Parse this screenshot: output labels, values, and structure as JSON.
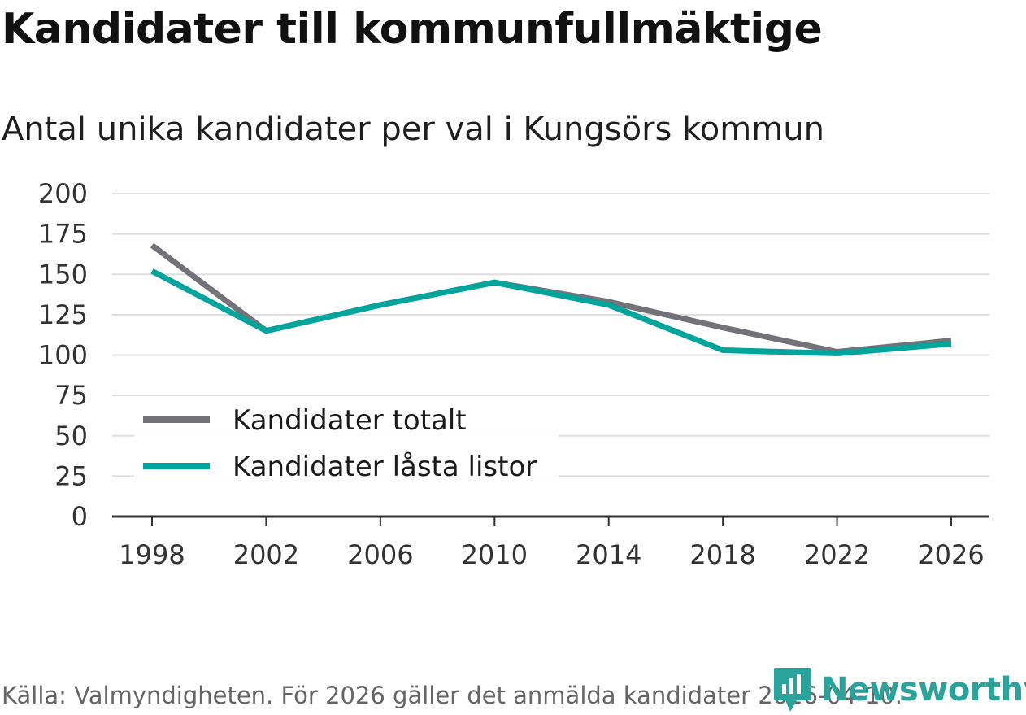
{
  "title": "Kandidater till kommunfullmäktige",
  "subtitle": "Antal unika kandidater per val i Kungsörs kommun",
  "source": "Källa: Valmyndigheten. För 2026 gäller det anmälda kandidater 2026-04-10.",
  "brand": {
    "name": "Newsworthy",
    "icon": "newsworthy-logo-icon",
    "color": "#2aa39a"
  },
  "chart_data": {
    "type": "line",
    "title": "Kandidater till kommunfullmäktige",
    "subtitle": "Antal unika kandidater per val i Kungsörs kommun",
    "xlabel": "",
    "ylabel": "",
    "x": [
      1998,
      2002,
      2006,
      2010,
      2014,
      2018,
      2022,
      2026
    ],
    "x_ticks": [
      "1998",
      "2002",
      "2006",
      "2010",
      "2014",
      "2018",
      "2022",
      "2026"
    ],
    "ylim": [
      0,
      200
    ],
    "y_ticks": [
      "0",
      "25",
      "50",
      "75",
      "100",
      "125",
      "150",
      "175",
      "200"
    ],
    "grid": true,
    "legend_position": "bottom-left",
    "series": [
      {
        "name": "Kandidater totalt",
        "color": "#737278",
        "values": [
          168,
          115,
          131,
          145,
          133,
          117,
          102,
          109
        ]
      },
      {
        "name": "Kandidater låsta listor",
        "color": "#00a59b",
        "values": [
          152,
          115,
          131,
          145,
          131,
          103,
          101,
          107
        ]
      }
    ]
  }
}
